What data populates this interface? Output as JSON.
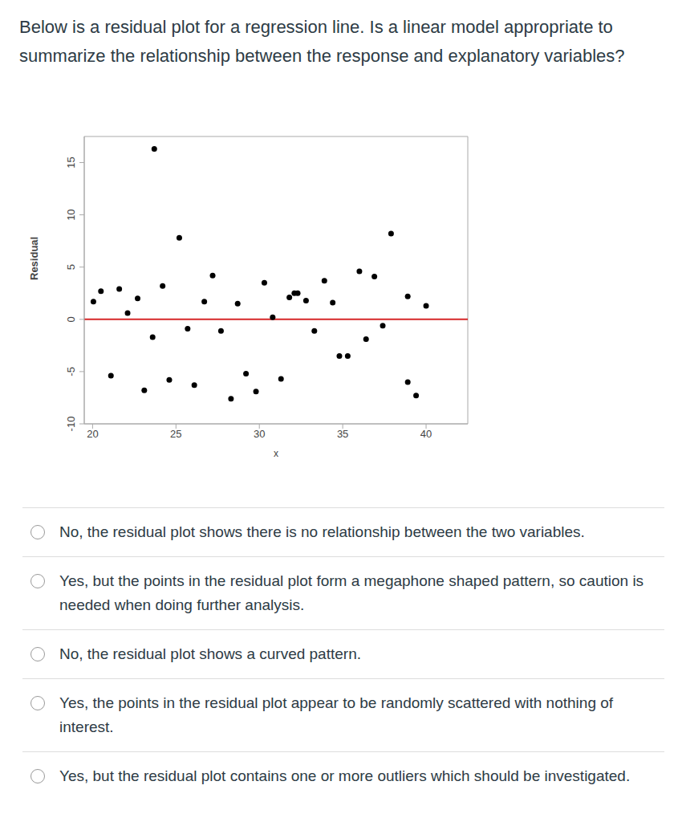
{
  "question": "Below is a residual plot for a regression line. Is a linear model appropriate to summarize the relationship between the response and explanatory variables?",
  "chart_data": {
    "type": "scatter",
    "x_label": "x",
    "y_label": "Residual",
    "xlim": [
      19.5,
      42.5
    ],
    "ylim": [
      -10,
      17.5
    ],
    "xticks": [
      20,
      25,
      30,
      35,
      40
    ],
    "yticks": [
      -10,
      -5,
      0,
      5,
      10,
      15
    ],
    "color": "#000000",
    "marker": "circle",
    "grid": false,
    "hline": {
      "y": 0,
      "color": "#d62728"
    },
    "x": [
      20.05,
      20.5,
      21.1,
      21.6,
      22.1,
      22.7,
      23.1,
      23.6,
      23.7,
      24.2,
      24.6,
      25.2,
      25.7,
      26.1,
      26.7,
      27.2,
      27.7,
      28.3,
      28.7,
      29.2,
      29.8,
      30.3,
      30.8,
      31.3,
      31.8,
      32.1,
      32.3,
      32.8,
      33.3,
      33.9,
      34.4,
      34.8,
      35.3,
      36.0,
      36.4,
      36.9,
      37.4,
      37.9,
      38.9,
      38.9,
      39.4,
      40.0
    ],
    "values": [
      1.7,
      2.7,
      -5.4,
      2.9,
      0.6,
      2.0,
      -6.8,
      -1.7,
      16.3,
      3.2,
      -5.8,
      7.8,
      -0.9,
      -6.3,
      1.7,
      4.2,
      -1.1,
      -7.6,
      1.5,
      -5.2,
      -6.9,
      3.5,
      0.2,
      -5.7,
      2.1,
      2.5,
      2.5,
      1.8,
      -1.1,
      3.7,
      1.6,
      -3.5,
      -3.5,
      4.6,
      -1.9,
      4.1,
      -0.6,
      8.2,
      2.2,
      -6.0,
      -7.3,
      1.3
    ]
  },
  "options": [
    "No, the residual plot shows there is no relationship between the two variables.",
    "Yes, but the points in the residual plot form a megaphone shaped pattern, so caution is needed when doing further analysis.",
    "No, the residual plot shows a curved pattern.",
    "Yes, the points in the residual plot appear to be randomly scattered with nothing of interest.",
    "Yes, but the residual plot contains one or more outliers which should be investigated."
  ]
}
